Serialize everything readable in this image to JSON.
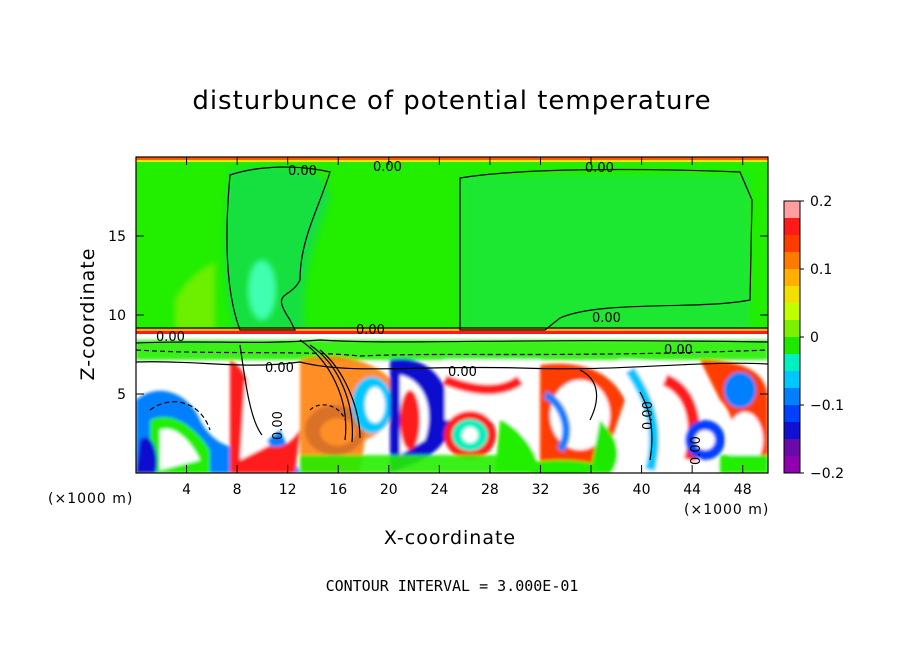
{
  "chart_data": {
    "type": "heatmap",
    "title": "disturbunce of potential temperature",
    "xlabel": "X-coordinate",
    "ylabel": "Z-coordinate",
    "x_unit": "(×1000 m)",
    "x_unit_right": "(×1000 m)",
    "xlim": [
      0,
      50
    ],
    "ylim": [
      0,
      20
    ],
    "x_ticks": [
      "4",
      "8",
      "12",
      "16",
      "20",
      "24",
      "28",
      "32",
      "36",
      "40",
      "44",
      "48"
    ],
    "y_ticks": [
      "5",
      "10",
      "15"
    ],
    "colorbar": {
      "range": [
        -0.2,
        0.2
      ],
      "tick_labels": [
        "0.2",
        "0.1",
        "0",
        "−0.1",
        "−0.2"
      ],
      "colors": [
        "#ff9e9e",
        "#ff1a1a",
        "#ff3c00",
        "#ff7a00",
        "#ffb000",
        "#f0e000",
        "#c0ff00",
        "#7cf000",
        "#1ee800",
        "#00f0c0",
        "#00c8ff",
        "#0080ff",
        "#0040ff",
        "#1010d0",
        "#6a0aa8",
        "#9000b0"
      ]
    },
    "contour_labels": [
      "0.00",
      "0.00",
      "0.00",
      "0.00",
      "0.00",
      "0.00",
      "0.00",
      "0.00",
      "0.00",
      "0.00",
      "0.00",
      "0.00"
    ],
    "contour_interval": "CONTOUR INTERVAL = 3.000E-01"
  }
}
